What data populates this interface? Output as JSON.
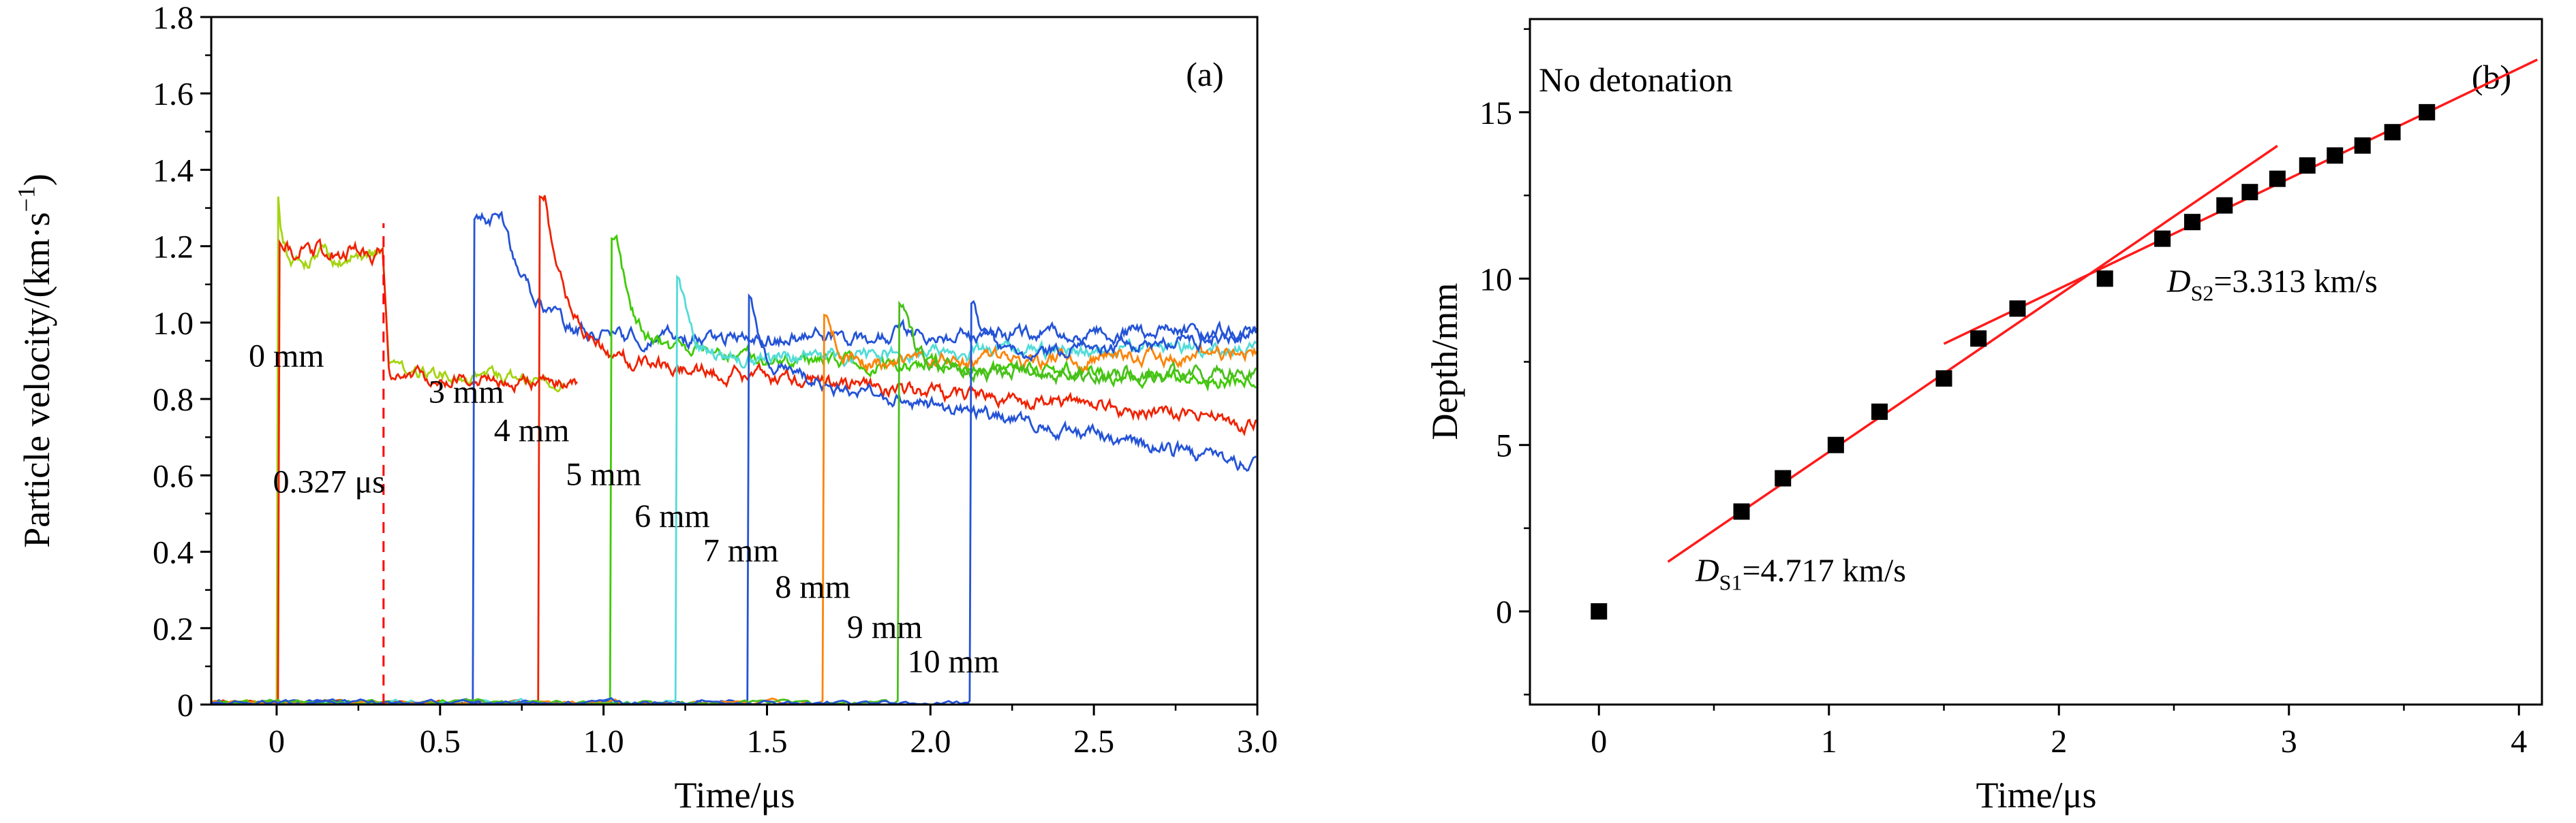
{
  "figure": {
    "background": "#ffffff"
  },
  "chart_data": [
    {
      "type": "line",
      "panel_label": "(a)",
      "xlabel": "Time/μs",
      "ylabel": "Particle velocity/(km·s⁻¹)",
      "ylabel_parts": [
        {
          "t": "Particle velocity/(km·s"
        },
        {
          "t": "−1",
          "sup": true
        },
        {
          "t": ")"
        }
      ],
      "xlim": [
        -0.2,
        3.0
      ],
      "ylim": [
        0,
        1.8
      ],
      "xtick_vals": [
        0,
        0.5,
        1.0,
        1.5,
        2.0,
        2.5,
        3.0
      ],
      "xtick_labels": [
        "0",
        "0.5",
        "1.0",
        "1.5",
        "2.0",
        "2.5",
        "3.0"
      ],
      "xminor_vals": [
        0.25,
        0.75,
        1.25,
        1.75,
        2.25,
        2.75
      ],
      "ytick_vals": [
        0,
        0.2,
        0.4,
        0.6,
        0.8,
        1.0,
        1.2,
        1.4,
        1.6,
        1.8
      ],
      "ytick_labels": [
        "0",
        "0.2",
        "0.4",
        "0.6",
        "0.8",
        "1.0",
        "1.2",
        "1.4",
        "1.6",
        "1.8"
      ],
      "yminor_vals": [
        0.1,
        0.3,
        0.5,
        0.7,
        0.9,
        1.1,
        1.3,
        1.5,
        1.7
      ],
      "marker_line": {
        "x": 0.327,
        "y0": 0,
        "y1": 1.26,
        "color": "#ff0000",
        "style": "dashed"
      },
      "series": [
        {
          "name": "0 mm",
          "color": "#a4d411",
          "t_jump": 0.0,
          "peak": 1.33,
          "plateau": 1.17,
          "t_drop": 0.327,
          "after_drop": 0.875,
          "end": 0.845,
          "t_end": 0.88
        },
        {
          "name": "0 mm",
          "color": "#ef2201",
          "t_jump": 0.004,
          "peak": 1.21,
          "plateau": 1.183,
          "t_drop": 0.327,
          "after_drop": 0.862,
          "end": 0.838,
          "t_end": 0.92
        },
        {
          "name": "3 mm",
          "color": "#2453d6",
          "t_jump": 0.6,
          "peak": 1.27,
          "hold": 0.09,
          "tau": 0.09,
          "settle": 0.955,
          "end": 0.975
        },
        {
          "name": "4 mm",
          "color": "#ef2201",
          "t_jump": 0.8,
          "peak": 1.33,
          "hold": 0.02,
          "tau": 0.07,
          "settle": 0.915,
          "end": 0.74
        },
        {
          "name": "5 mm",
          "color": "#3fca06",
          "t_jump": 1.02,
          "peak": 1.22,
          "hold": 0.02,
          "tau": 0.05,
          "settle": 0.925,
          "end": 0.85
        },
        {
          "name": "6 mm",
          "color": "#52dcd8",
          "t_jump": 1.22,
          "peak": 1.12,
          "hold": 0.01,
          "tau": 0.04,
          "settle": 0.9,
          "end": 0.935
        },
        {
          "name": "7 mm",
          "color": "#2453d6",
          "t_jump": 1.44,
          "peak": 1.07,
          "hold": 0.01,
          "tau": 0.04,
          "settle": 0.875,
          "end": 0.62
        },
        {
          "name": "8 mm",
          "color": "#fd8408",
          "t_jump": 1.67,
          "peak": 1.02,
          "hold": 0.015,
          "tau": 0.04,
          "settle": 0.885,
          "end": 0.92
        },
        {
          "name": "9 mm",
          "color": "#49bf1c",
          "t_jump": 1.9,
          "peak": 1.05,
          "hold": 0.015,
          "tau": 0.04,
          "settle": 0.87,
          "end": 0.865
        },
        {
          "name": "10 mm",
          "color": "#2453d6",
          "t_jump": 2.12,
          "peak": 1.05,
          "hold": 0.015,
          "tau": 0.04,
          "settle": 0.9,
          "end": 0.97
        }
      ],
      "annotations": [
        {
          "text": "0 mm",
          "x": 0.03,
          "y": 0.885,
          "anchor": "middle"
        },
        {
          "text": "0.327 μs",
          "x": 0.16,
          "y": 0.555,
          "anchor": "middle"
        },
        {
          "text": "3 mm",
          "x": 0.58,
          "y": 0.79,
          "anchor": "middle"
        },
        {
          "text": "4 mm",
          "x": 0.78,
          "y": 0.69,
          "anchor": "middle"
        },
        {
          "text": "5 mm",
          "x": 1.0,
          "y": 0.575,
          "anchor": "middle"
        },
        {
          "text": "6 mm",
          "x": 1.21,
          "y": 0.465,
          "anchor": "middle"
        },
        {
          "text": "7 mm",
          "x": 1.42,
          "y": 0.375,
          "anchor": "middle"
        },
        {
          "text": "8 mm",
          "x": 1.64,
          "y": 0.28,
          "anchor": "middle"
        },
        {
          "text": "9 mm",
          "x": 1.86,
          "y": 0.175,
          "anchor": "middle"
        },
        {
          "text": "10 mm",
          "x": 2.07,
          "y": 0.085,
          "anchor": "middle"
        }
      ]
    },
    {
      "type": "scatter",
      "panel_label": "(b)",
      "note": "No detonation",
      "xlabel": "Time/μs",
      "ylabel": "Depth/mm",
      "xlim": [
        -0.3,
        4.1
      ],
      "ylim": [
        -2.8,
        17.8
      ],
      "xtick_vals": [
        0,
        1,
        2,
        3,
        4
      ],
      "xtick_labels": [
        "0",
        "1",
        "2",
        "3",
        "4"
      ],
      "xminor_vals": [
        0.5,
        1.5,
        2.5,
        3.5
      ],
      "ytick_vals": [
        0,
        5,
        10,
        15
      ],
      "ytick_labels": [
        "0",
        "5",
        "10",
        "15"
      ],
      "yminor_vals": [
        -2.5,
        2.5,
        7.5,
        12.5,
        17.5
      ],
      "point_color": "#000000",
      "points": [
        [
          0,
          0
        ],
        [
          0.62,
          3
        ],
        [
          0.8,
          4
        ],
        [
          1.03,
          5
        ],
        [
          1.22,
          6
        ],
        [
          1.5,
          7
        ],
        [
          1.65,
          8.2
        ],
        [
          1.82,
          9.1
        ],
        [
          2.2,
          10
        ],
        [
          2.45,
          11.2
        ],
        [
          2.58,
          11.7
        ],
        [
          2.72,
          12.2
        ],
        [
          2.83,
          12.6
        ],
        [
          2.95,
          13.0
        ],
        [
          3.08,
          13.4
        ],
        [
          3.2,
          13.7
        ],
        [
          3.32,
          14.0
        ],
        [
          3.45,
          14.4
        ],
        [
          3.6,
          15.0
        ]
      ],
      "fit_lines": [
        {
          "name": "D_S1",
          "value": "4.717 km/s",
          "x": [
            0.3,
            2.95
          ],
          "y": [
            1.49,
            13.99
          ],
          "color": "#ff1a1a"
        },
        {
          "name": "D_S2",
          "value": "3.313 km/s",
          "x": [
            1.5,
            4.08
          ],
          "y": [
            8.04,
            16.58
          ],
          "color": "#ff1a1a"
        }
      ],
      "annotations": [
        {
          "parts": [
            {
              "t": "D",
              "italic": true
            },
            {
              "t": "S1",
              "sub": true
            },
            {
              "t": "=4.717 km/s"
            }
          ],
          "x": 0.42,
          "y": 0.9,
          "anchor": "start"
        },
        {
          "parts": [
            {
              "t": "D",
              "italic": true
            },
            {
              "t": "S2",
              "sub": true
            },
            {
              "t": "=3.313 km/s"
            }
          ],
          "x": 2.47,
          "y": 9.6,
          "anchor": "start"
        }
      ]
    }
  ]
}
